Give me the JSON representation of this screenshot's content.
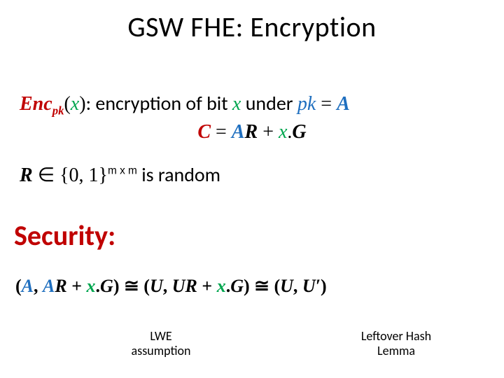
{
  "colors": {
    "red": "#c00000",
    "green": "#00a64f",
    "blue": "#1f6fbf",
    "black": "#000000",
    "background": "#ffffff"
  },
  "title": "GSW FHE:  Encryption",
  "line1": {
    "enc": "Enc",
    "pk_sub": "pk",
    "x": "x",
    "t1": ": encryption of bit ",
    "t2": " under ",
    "pk": "pk",
    "eq": " = ",
    "A": "A"
  },
  "line2": {
    "C": "C",
    "eq1": "  =  ",
    "A": "A",
    "R": "R",
    "plus": "  +  ",
    "x": "x",
    "dot": ".",
    "G": "G"
  },
  "line3": {
    "R": "R",
    "in": " ∈ {0, 1}",
    "dims": "m x m",
    "t": "  is random"
  },
  "security_heading": "Security:",
  "security_line": {
    "lp1": "(",
    "A1": "A",
    "c1": ", ",
    "A2": "A",
    "R1": "R",
    "plus1": " + ",
    "x1": "x",
    "dot1": ".",
    "G1": "G",
    "rp1": ")",
    "iso1": "  ≅  ",
    "lp2": "(",
    "U1": "U",
    "c2": ", ",
    "U2": "U",
    "R2": "R",
    "plus2": " + ",
    "x2": "x",
    "dot2": ".",
    "G2": "G",
    "rp2": ")",
    "iso2": "  ≅  ",
    "lp3": "(",
    "U3": "U",
    "c3": ", ",
    "Up": "U′",
    "rp3": ")"
  },
  "foot1a": "LWE",
  "foot1b": "assumption",
  "foot2a": "Leftover Hash",
  "foot2b": "Lemma"
}
